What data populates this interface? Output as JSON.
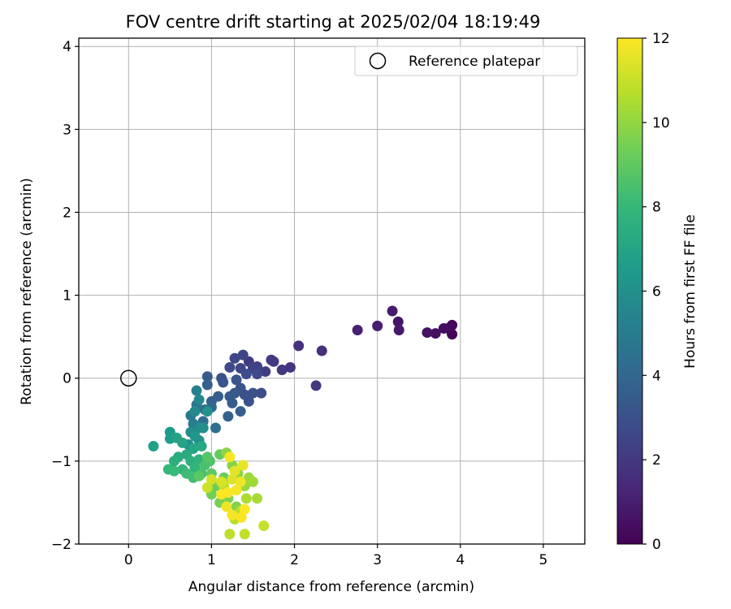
{
  "chart_data": {
    "type": "scatter",
    "title": "FOV centre drift starting at 2025/02/04 18:19:49",
    "xlabel": "Angular distance from reference (arcmin)",
    "ylabel": "Rotation from reference (arcmin)",
    "xlim": [
      -0.6,
      5.5
    ],
    "ylim": [
      -2.0,
      4.1
    ],
    "xticks": [
      0,
      1,
      2,
      3,
      4,
      5
    ],
    "yticks": [
      -2,
      -1,
      0,
      1,
      2,
      3,
      4
    ],
    "xtick_labels": [
      "0",
      "1",
      "2",
      "3",
      "4",
      "5"
    ],
    "ytick_labels": [
      "−2",
      "−1",
      "0",
      "1",
      "2",
      "3",
      "4"
    ],
    "grid": true,
    "legend": {
      "placement": "top-right",
      "entries": [
        {
          "label": "Reference platepar",
          "marker": "open-circle"
        }
      ]
    },
    "reference_point": {
      "x": 0,
      "y": 0
    },
    "colorbar": {
      "label": "Hours from first FF file",
      "colormap": "viridis",
      "range": [
        0,
        12
      ],
      "ticks": [
        0,
        2,
        4,
        6,
        8,
        10,
        12
      ],
      "tick_labels": [
        "0",
        "2",
        "4",
        "6",
        "8",
        "10",
        "12"
      ],
      "stops": [
        "#440154",
        "#482878",
        "#3e4989",
        "#31688e",
        "#26828e",
        "#1f9e89",
        "#35b779",
        "#6ece58",
        "#b5de2b",
        "#fde725"
      ]
    },
    "points": [
      {
        "x": 3.9,
        "y": 0.53,
        "h": 0.1
      },
      {
        "x": 3.9,
        "y": 0.64,
        "h": 0.2
      },
      {
        "x": 3.85,
        "y": 0.6,
        "h": 0.3
      },
      {
        "x": 3.8,
        "y": 0.6,
        "h": 0.4
      },
      {
        "x": 3.7,
        "y": 0.54,
        "h": 0.5
      },
      {
        "x": 3.6,
        "y": 0.55,
        "h": 0.6
      },
      {
        "x": 3.25,
        "y": 0.68,
        "h": 0.7
      },
      {
        "x": 3.26,
        "y": 0.58,
        "h": 0.8
      },
      {
        "x": 3.18,
        "y": 0.81,
        "h": 0.9
      },
      {
        "x": 3.0,
        "y": 0.63,
        "h": 1.0
      },
      {
        "x": 2.76,
        "y": 0.58,
        "h": 1.1
      },
      {
        "x": 2.33,
        "y": 0.33,
        "h": 1.6
      },
      {
        "x": 2.05,
        "y": 0.39,
        "h": 1.7
      },
      {
        "x": 2.26,
        "y": -0.09,
        "h": 2.0
      },
      {
        "x": 1.95,
        "y": 0.13,
        "h": 1.8
      },
      {
        "x": 1.85,
        "y": 0.1,
        "h": 1.9
      },
      {
        "x": 1.75,
        "y": 0.2,
        "h": 2.0
      },
      {
        "x": 1.72,
        "y": 0.22,
        "h": 2.1
      },
      {
        "x": 1.65,
        "y": 0.08,
        "h": 2.2
      },
      {
        "x": 1.55,
        "y": 0.14,
        "h": 2.3
      },
      {
        "x": 1.45,
        "y": 0.2,
        "h": 2.2
      },
      {
        "x": 1.5,
        "y": 0.12,
        "h": 2.4
      },
      {
        "x": 1.38,
        "y": 0.28,
        "h": 2.5
      },
      {
        "x": 1.28,
        "y": 0.24,
        "h": 2.6
      },
      {
        "x": 1.35,
        "y": 0.12,
        "h": 2.6
      },
      {
        "x": 1.22,
        "y": 0.13,
        "h": 2.7
      },
      {
        "x": 1.42,
        "y": 0.05,
        "h": 2.8
      },
      {
        "x": 1.55,
        "y": 0.05,
        "h": 2.7
      },
      {
        "x": 1.6,
        "y": -0.18,
        "h": 2.9
      },
      {
        "x": 1.5,
        "y": -0.18,
        "h": 3.0
      },
      {
        "x": 1.45,
        "y": -0.28,
        "h": 3.1
      },
      {
        "x": 1.4,
        "y": -0.2,
        "h": 3.0
      },
      {
        "x": 1.35,
        "y": -0.12,
        "h": 3.1
      },
      {
        "x": 1.3,
        "y": -0.02,
        "h": 3.2
      },
      {
        "x": 1.12,
        "y": 0.0,
        "h": 3.0
      },
      {
        "x": 1.14,
        "y": -0.05,
        "h": 3.2
      },
      {
        "x": 1.28,
        "y": -0.18,
        "h": 3.3
      },
      {
        "x": 1.22,
        "y": -0.22,
        "h": 3.4
      },
      {
        "x": 1.25,
        "y": -0.3,
        "h": 3.5
      },
      {
        "x": 1.35,
        "y": -0.4,
        "h": 3.6
      },
      {
        "x": 1.2,
        "y": -0.46,
        "h": 3.7
      },
      {
        "x": 1.08,
        "y": -0.22,
        "h": 3.6
      },
      {
        "x": 1.0,
        "y": -0.28,
        "h": 3.7
      },
      {
        "x": 0.95,
        "y": 0.02,
        "h": 3.4
      },
      {
        "x": 0.95,
        "y": -0.08,
        "h": 3.6
      },
      {
        "x": 1.0,
        "y": -0.35,
        "h": 4.0
      },
      {
        "x": 0.92,
        "y": -0.38,
        "h": 4.2
      },
      {
        "x": 0.9,
        "y": -0.52,
        "h": 4.3
      },
      {
        "x": 1.05,
        "y": -0.6,
        "h": 4.4
      },
      {
        "x": 0.82,
        "y": -0.32,
        "h": 4.6
      },
      {
        "x": 0.75,
        "y": -0.45,
        "h": 4.8
      },
      {
        "x": 0.78,
        "y": -0.55,
        "h": 5.0
      },
      {
        "x": 0.82,
        "y": -0.15,
        "h": 5.3
      },
      {
        "x": 0.85,
        "y": -0.26,
        "h": 5.5
      },
      {
        "x": 0.8,
        "y": -0.4,
        "h": 5.6
      },
      {
        "x": 0.85,
        "y": -0.6,
        "h": 5.7
      },
      {
        "x": 0.75,
        "y": -0.65,
        "h": 5.9
      },
      {
        "x": 0.72,
        "y": -0.8,
        "h": 6.0
      },
      {
        "x": 0.85,
        "y": -0.75,
        "h": 6.1
      },
      {
        "x": 0.8,
        "y": -0.7,
        "h": 6.2
      },
      {
        "x": 0.9,
        "y": -0.6,
        "h": 6.0
      },
      {
        "x": 0.95,
        "y": -0.4,
        "h": 6.1
      },
      {
        "x": 0.5,
        "y": -0.65,
        "h": 6.5
      },
      {
        "x": 0.5,
        "y": -0.73,
        "h": 6.6
      },
      {
        "x": 0.3,
        "y": -0.82,
        "h": 6.8
      },
      {
        "x": 0.58,
        "y": -0.72,
        "h": 6.9
      },
      {
        "x": 0.65,
        "y": -0.78,
        "h": 7.0
      },
      {
        "x": 0.78,
        "y": -0.85,
        "h": 7.1
      },
      {
        "x": 0.88,
        "y": -0.82,
        "h": 7.2
      },
      {
        "x": 0.7,
        "y": -0.92,
        "h": 7.3
      },
      {
        "x": 0.6,
        "y": -0.95,
        "h": 7.4
      },
      {
        "x": 0.55,
        "y": -1.0,
        "h": 7.5
      },
      {
        "x": 0.75,
        "y": -1.0,
        "h": 7.6
      },
      {
        "x": 0.85,
        "y": -0.98,
        "h": 7.7
      },
      {
        "x": 0.8,
        "y": -1.08,
        "h": 7.8
      },
      {
        "x": 0.65,
        "y": -1.1,
        "h": 7.9
      },
      {
        "x": 0.48,
        "y": -1.1,
        "h": 8.0
      },
      {
        "x": 0.55,
        "y": -1.12,
        "h": 8.1
      },
      {
        "x": 0.7,
        "y": -1.15,
        "h": 8.2
      },
      {
        "x": 0.78,
        "y": -1.2,
        "h": 8.3
      },
      {
        "x": 0.88,
        "y": -1.15,
        "h": 8.4
      },
      {
        "x": 0.92,
        "y": -1.05,
        "h": 8.5
      },
      {
        "x": 0.98,
        "y": -1.0,
        "h": 8.6
      },
      {
        "x": 0.95,
        "y": -0.95,
        "h": 8.8
      },
      {
        "x": 0.85,
        "y": -1.18,
        "h": 8.9
      },
      {
        "x": 1.0,
        "y": -1.15,
        "h": 9.0
      },
      {
        "x": 1.1,
        "y": -0.92,
        "h": 9.1
      },
      {
        "x": 1.15,
        "y": -1.2,
        "h": 9.2
      },
      {
        "x": 1.05,
        "y": -1.3,
        "h": 9.3
      },
      {
        "x": 1.0,
        "y": -1.4,
        "h": 9.4
      },
      {
        "x": 1.1,
        "y": -1.5,
        "h": 9.5
      },
      {
        "x": 1.2,
        "y": -1.45,
        "h": 9.6
      },
      {
        "x": 1.3,
        "y": -1.55,
        "h": 9.7
      },
      {
        "x": 1.25,
        "y": -1.05,
        "h": 9.8
      },
      {
        "x": 1.18,
        "y": -0.9,
        "h": 9.9
      },
      {
        "x": 1.32,
        "y": -1.15,
        "h": 10.0
      },
      {
        "x": 1.4,
        "y": -1.3,
        "h": 10.1
      },
      {
        "x": 1.45,
        "y": -1.2,
        "h": 10.2
      },
      {
        "x": 1.5,
        "y": -1.25,
        "h": 10.3
      },
      {
        "x": 1.55,
        "y": -1.45,
        "h": 10.4
      },
      {
        "x": 1.42,
        "y": -1.45,
        "h": 10.5
      },
      {
        "x": 1.35,
        "y": -1.6,
        "h": 10.6
      },
      {
        "x": 1.28,
        "y": -1.7,
        "h": 10.7
      },
      {
        "x": 1.22,
        "y": -1.88,
        "h": 10.8
      },
      {
        "x": 1.4,
        "y": -1.88,
        "h": 10.9
      },
      {
        "x": 1.63,
        "y": -1.78,
        "h": 11.0
      },
      {
        "x": 1.15,
        "y": -1.3,
        "h": 10.9
      },
      {
        "x": 0.95,
        "y": -1.32,
        "h": 11.1
      },
      {
        "x": 1.0,
        "y": -1.22,
        "h": 11.2
      },
      {
        "x": 1.12,
        "y": -1.25,
        "h": 11.3
      },
      {
        "x": 1.25,
        "y": -1.22,
        "h": 11.4
      },
      {
        "x": 1.28,
        "y": -1.12,
        "h": 11.5
      },
      {
        "x": 1.38,
        "y": -1.05,
        "h": 11.6
      },
      {
        "x": 1.35,
        "y": -1.25,
        "h": 11.7
      },
      {
        "x": 1.3,
        "y": -1.35,
        "h": 11.8
      },
      {
        "x": 1.2,
        "y": -1.38,
        "h": 11.9
      },
      {
        "x": 1.18,
        "y": -1.55,
        "h": 11.7
      },
      {
        "x": 1.25,
        "y": -1.65,
        "h": 11.8
      },
      {
        "x": 1.36,
        "y": -1.68,
        "h": 11.9
      },
      {
        "x": 1.4,
        "y": -1.58,
        "h": 12.0
      },
      {
        "x": 1.22,
        "y": -0.95,
        "h": 11.9
      },
      {
        "x": 1.12,
        "y": -1.4,
        "h": 12.0
      }
    ]
  }
}
